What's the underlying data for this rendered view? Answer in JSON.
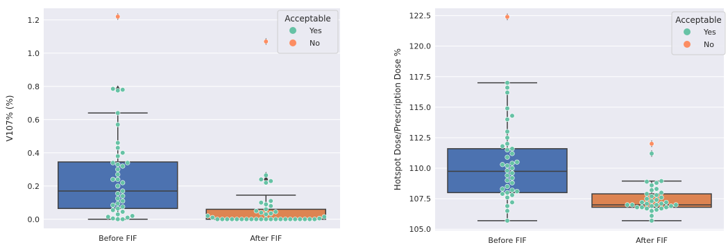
{
  "chart_data": [
    {
      "type": "box-swarm",
      "ylabel": "V107% (%)",
      "categories": [
        "Before FIF",
        "After FIF"
      ],
      "ylim": [
        -0.055,
        1.27
      ],
      "yticks": [
        0.0,
        0.2,
        0.4,
        0.6,
        0.8,
        1.0,
        1.2
      ],
      "ytick_labels": [
        "0.0",
        "0.2",
        "0.4",
        "0.6",
        "0.8",
        "1.0",
        "1.2"
      ],
      "grid": true,
      "box_colors": [
        "#4c72b0",
        "#dd8452"
      ],
      "boxes": [
        {
          "category": "Before FIF",
          "whisker_low": 0.0,
          "q1": 0.065,
          "median": 0.17,
          "q3": 0.345,
          "whisker_high": 0.64,
          "fliers": [
            0.785,
            1.22
          ]
        },
        {
          "category": "After FIF",
          "whisker_low": 0.0,
          "q1": 0.0,
          "median": 0.0,
          "q3": 0.06,
          "whisker_high": 0.145,
          "fliers": [
            0.24,
            0.265,
            1.07
          ]
        }
      ],
      "points": [
        {
          "category": "Before FIF",
          "acceptable": "Yes",
          "values": [
            0.0,
            0.0,
            0.005,
            0.01,
            0.015,
            0.02,
            0.03,
            0.045,
            0.055,
            0.065,
            0.075,
            0.085,
            0.095,
            0.11,
            0.125,
            0.14,
            0.155,
            0.17,
            0.2,
            0.22,
            0.24,
            0.24,
            0.27,
            0.3,
            0.32,
            0.33,
            0.34,
            0.34,
            0.38,
            0.4,
            0.43,
            0.46,
            0.57,
            0.64,
            0.775,
            0.78,
            0.785
          ]
        },
        {
          "category": "Before FIF",
          "acceptable": "No",
          "values": [
            1.22
          ]
        },
        {
          "category": "After FIF",
          "acceptable": "Yes",
          "values": [
            0.0,
            0.0,
            0.0,
            0.0,
            0.0,
            0.0,
            0.0,
            0.0,
            0.0,
            0.0,
            0.0,
            0.0,
            0.0,
            0.0,
            0.0,
            0.0,
            0.0,
            0.0,
            0.0,
            0.0,
            0.0,
            0.005,
            0.01,
            0.015,
            0.02,
            0.03,
            0.035,
            0.04,
            0.045,
            0.05,
            0.06,
            0.08,
            0.09,
            0.1,
            0.11,
            0.22,
            0.23,
            0.24,
            0.265
          ]
        },
        {
          "category": "After FIF",
          "acceptable": "No",
          "values": [
            1.07
          ]
        }
      ],
      "legend": {
        "title": "Acceptable",
        "entries": [
          {
            "label": "Yes",
            "color": "#66c2a5"
          },
          {
            "label": "No",
            "color": "#fc8d62"
          }
        ],
        "position": "top-right"
      }
    },
    {
      "type": "box-swarm",
      "ylabel": "Hotspot Dose/Prescription Dose %",
      "categories": [
        "Before FIF",
        "After FIF"
      ],
      "ylim": [
        104.9,
        123.1
      ],
      "yticks": [
        105.0,
        107.5,
        110.0,
        112.5,
        115.0,
        117.5,
        120.0,
        122.5
      ],
      "ytick_labels": [
        "105.0",
        "107.5",
        "110.0",
        "112.5",
        "115.0",
        "117.5",
        "120.0",
        "122.5"
      ],
      "grid": true,
      "box_colors": [
        "#4c72b0",
        "#dd8452"
      ],
      "boxes": [
        {
          "category": "Before FIF",
          "whisker_low": 105.7,
          "q1": 108.0,
          "median": 109.75,
          "q3": 111.6,
          "whisker_high": 117.0,
          "fliers": [
            122.4
          ]
        },
        {
          "category": "After FIF",
          "whisker_low": 105.7,
          "q1": 106.8,
          "median": 107.0,
          "q3": 107.9,
          "whisker_high": 108.95,
          "fliers": [
            111.2,
            112.0
          ]
        }
      ],
      "points": [
        {
          "category": "Before FIF",
          "acceptable": "Yes",
          "values": [
            105.7,
            106.5,
            106.9,
            107.2,
            107.6,
            107.8,
            107.9,
            108.0,
            108.1,
            108.2,
            108.3,
            108.5,
            108.8,
            109.0,
            109.2,
            109.4,
            109.6,
            109.8,
            110.0,
            110.2,
            110.3,
            110.4,
            110.5,
            110.9,
            111.2,
            111.5,
            111.6,
            111.8,
            112.0,
            112.5,
            113.0,
            114.0,
            114.3,
            114.9,
            116.2,
            116.6,
            117.0
          ]
        },
        {
          "category": "Before FIF",
          "acceptable": "No",
          "values": [
            122.4
          ]
        },
        {
          "category": "After FIF",
          "acceptable": "Yes",
          "values": [
            105.7,
            106.1,
            106.5,
            106.6,
            106.7,
            106.7,
            106.8,
            106.8,
            106.8,
            106.9,
            106.9,
            107.0,
            107.0,
            107.0,
            107.0,
            107.1,
            107.1,
            107.2,
            107.2,
            107.3,
            107.4,
            107.5,
            107.6,
            107.7,
            107.8,
            107.9,
            108.0,
            108.2,
            108.3,
            108.6,
            108.8,
            108.9,
            108.95,
            111.2
          ]
        },
        {
          "category": "After FIF",
          "acceptable": "No",
          "values": [
            112.0
          ]
        }
      ],
      "legend": {
        "title": "Acceptable",
        "entries": [
          {
            "label": "Yes",
            "color": "#66c2a5"
          },
          {
            "label": "No",
            "color": "#fc8d62"
          }
        ],
        "position": "top-right"
      }
    }
  ],
  "style": {
    "axes_bg": "#eaeaf2",
    "grid_color": "#ffffff",
    "line_color": "#3f3f3f",
    "point_edge": "#ffffff"
  }
}
